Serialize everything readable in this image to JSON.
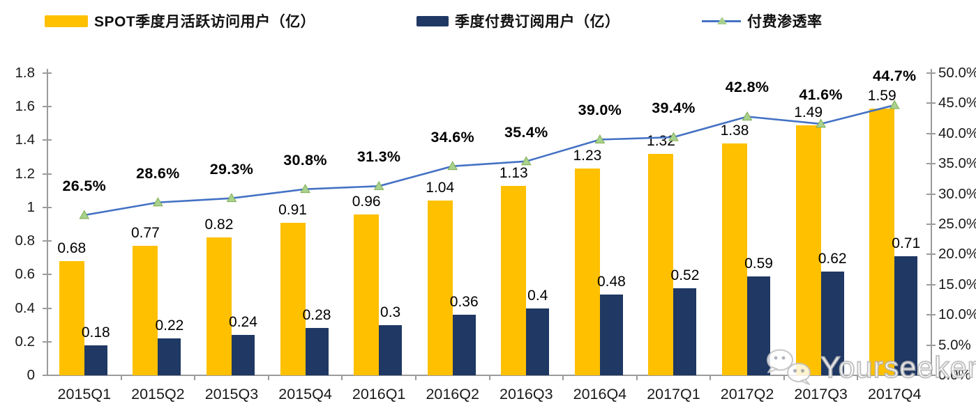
{
  "legend": {
    "items": [
      {
        "id": "mau",
        "label": "SPOT季度月活跃访问用户（亿）",
        "swatch": "bar",
        "color": "#FFC000"
      },
      {
        "id": "subs",
        "label": "季度付费订阅用户（亿）",
        "swatch": "bar",
        "color": "#1F3864"
      },
      {
        "id": "penetration",
        "label": "付费渗透率",
        "swatch": "line-with-triangle-marker",
        "color": "#4472C4",
        "marker_color": "#A9D18E"
      }
    ]
  },
  "chart_data": {
    "type": "bar+line combo",
    "categories": [
      "2015Q1",
      "2015Q2",
      "2015Q3",
      "2015Q4",
      "2016Q1",
      "2016Q2",
      "2016Q3",
      "2016Q4",
      "2017Q1",
      "2017Q2",
      "2017Q3",
      "2017Q4"
    ],
    "series": [
      {
        "name": "SPOT季度月活跃访问用户（亿）",
        "type": "bar",
        "axis": "left",
        "color": "#FFC000",
        "values": [
          0.68,
          0.77,
          0.82,
          0.91,
          0.96,
          1.04,
          1.13,
          1.23,
          1.32,
          1.38,
          1.49,
          1.59
        ],
        "labels": [
          "0.68",
          "0.77",
          "0.82",
          "0.91",
          "0.96",
          "1.04",
          "1.13",
          "1.23",
          "1.32",
          "1.38",
          "1.49",
          "1.59"
        ]
      },
      {
        "name": "季度付费订阅用户（亿）",
        "type": "bar",
        "axis": "left",
        "color": "#1F3864",
        "values": [
          0.18,
          0.22,
          0.24,
          0.28,
          0.3,
          0.36,
          0.4,
          0.48,
          0.52,
          0.59,
          0.62,
          0.71
        ],
        "labels": [
          "0.18",
          "0.22",
          "0.24",
          "0.28",
          "0.3",
          "0.36",
          "0.4",
          "0.48",
          "0.52",
          "0.59",
          "0.62",
          "0.71"
        ]
      },
      {
        "name": "付费渗透率",
        "type": "line",
        "axis": "right",
        "color": "#4472C4",
        "marker": "triangle",
        "marker_color": "#A9D18E",
        "marker_edge_color": "#7FAE54",
        "values": [
          26.5,
          28.6,
          29.3,
          30.8,
          31.3,
          34.6,
          35.4,
          39.0,
          39.4,
          42.8,
          41.6,
          44.7
        ],
        "labels": [
          "26.5%",
          "28.6%",
          "29.3%",
          "30.8%",
          "31.3%",
          "34.6%",
          "35.4%",
          "39.0%",
          "39.4%",
          "42.8%",
          "41.6%",
          "44.7%"
        ]
      }
    ],
    "left_axis": {
      "min": 0,
      "max": 1.8,
      "ticks": [
        "1.8",
        "1.6",
        "1.4",
        "1.2",
        "1",
        "0.8",
        "0.6",
        "0.4",
        "0.2",
        "0"
      ]
    },
    "right_axis": {
      "min": 0,
      "max": 50,
      "ticks": [
        "50.0%",
        "45.0%",
        "40.0%",
        "35.0%",
        "30.0%",
        "25.0%",
        "20.0%",
        "15.0%",
        "10.0%",
        "5.0%",
        "0.0%"
      ]
    },
    "grid": false,
    "legend_position": "top",
    "axis_color": "#9b9b9b"
  },
  "watermark": {
    "text": "Yourseeker",
    "icon": "wechat-icon"
  }
}
